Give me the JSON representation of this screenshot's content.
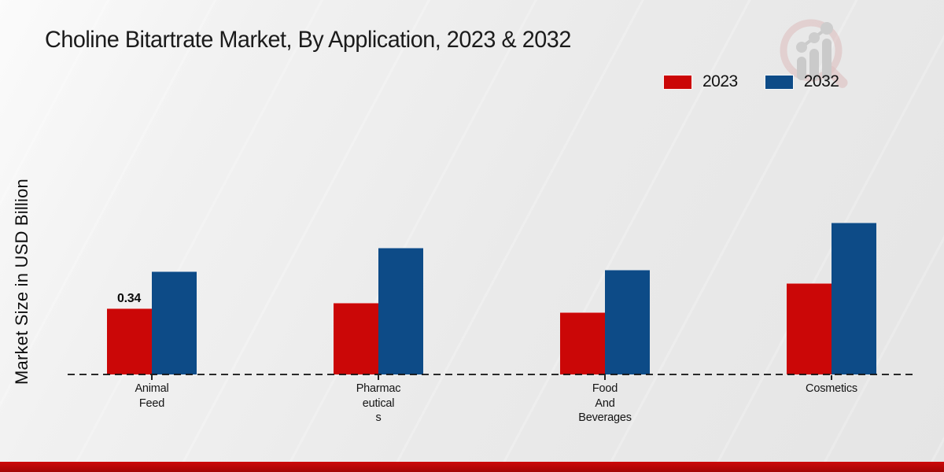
{
  "title": "Choline Bitartrate Market, By Application, 2023 & 2032",
  "y_axis_label": "Market Size in USD Billion",
  "legend": {
    "items": [
      {
        "label": "2023",
        "color": "#cb0707"
      },
      {
        "label": "2032",
        "color": "#0d4b87"
      }
    ]
  },
  "watermark": {
    "icon": "magnifier-growth-chart-logo"
  },
  "chart_data": {
    "type": "bar",
    "title": "Choline Bitartrate Market, By Application, 2023 & 2032",
    "xlabel": "",
    "ylabel": "Market Size in USD Billion",
    "categories": [
      "Animal Feed",
      "Pharmaceuticals",
      "Food And Beverages",
      "Cosmetics"
    ],
    "category_display_lines": [
      [
        "Animal",
        "Feed"
      ],
      [
        "Pharmac",
        "eutical",
        "s"
      ],
      [
        "Food",
        "And",
        "Beverages"
      ],
      [
        "Cosmetics"
      ]
    ],
    "series": [
      {
        "name": "2023",
        "color": "#cb0707",
        "values": [
          0.34,
          0.37,
          0.32,
          0.47
        ]
      },
      {
        "name": "2032",
        "color": "#0d4b87",
        "values": [
          0.53,
          0.65,
          0.54,
          0.78
        ]
      }
    ],
    "data_labels": [
      {
        "series_index": 0,
        "category_index": 0,
        "text": "0.34"
      }
    ],
    "ylim": [
      0,
      0.9
    ],
    "grid": false,
    "y_ticks_visible": false,
    "legend_position": "top-right",
    "baseline_style": "dashed"
  },
  "footer": {
    "band_color": "#b00606"
  }
}
